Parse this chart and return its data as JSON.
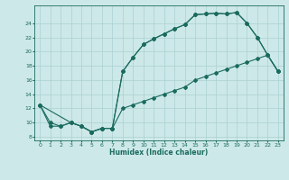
{
  "bg_color": "#cde8e8",
  "line_color": "#1a6b5e",
  "grid_color": "#aad0d0",
  "xlabel": "Humidex (Indice chaleur)",
  "xlim": [
    -0.5,
    23.5
  ],
  "ylim": [
    7.5,
    26.5
  ],
  "xticks": [
    0,
    1,
    2,
    3,
    4,
    5,
    6,
    7,
    8,
    9,
    10,
    11,
    12,
    13,
    14,
    15,
    16,
    17,
    18,
    19,
    20,
    21,
    22,
    23
  ],
  "yticks": [
    8,
    10,
    12,
    14,
    16,
    18,
    20,
    22,
    24
  ],
  "line1_x": [
    0,
    1,
    2,
    3,
    4,
    5,
    6,
    7,
    8,
    9,
    10,
    11,
    12,
    13,
    14,
    15,
    16,
    17,
    18,
    19,
    20,
    21,
    22,
    23
  ],
  "line1_y": [
    12.5,
    9.5,
    9.5,
    10.0,
    9.5,
    8.7,
    9.2,
    9.2,
    17.2,
    19.2,
    21.0,
    21.8,
    22.5,
    23.2,
    23.8,
    25.2,
    25.3,
    25.4,
    25.3,
    25.5,
    24.0,
    22.0,
    19.5,
    17.2
  ],
  "line2_x": [
    0,
    1,
    2,
    3,
    4,
    5,
    6,
    7,
    8,
    9,
    10,
    11,
    12,
    13,
    14,
    15,
    16,
    17,
    18,
    19,
    20,
    21,
    22,
    23
  ],
  "line2_y": [
    12.5,
    10.0,
    9.5,
    10.0,
    9.5,
    8.7,
    9.2,
    9.2,
    12.0,
    12.5,
    13.0,
    13.5,
    14.0,
    14.5,
    15.0,
    16.0,
    16.5,
    17.0,
    17.5,
    18.0,
    18.5,
    19.0,
    19.5,
    17.2
  ],
  "line3_x": [
    0,
    3,
    4,
    5,
    6,
    7,
    8,
    9,
    10,
    11,
    12,
    13,
    14,
    15,
    16,
    17,
    18,
    19,
    20,
    21,
    22,
    23
  ],
  "line3_y": [
    12.5,
    10.0,
    9.5,
    8.7,
    9.2,
    9.2,
    17.2,
    19.2,
    21.0,
    21.8,
    22.5,
    23.2,
    23.8,
    25.2,
    25.3,
    25.4,
    25.3,
    25.5,
    24.0,
    22.0,
    19.5,
    17.2
  ]
}
